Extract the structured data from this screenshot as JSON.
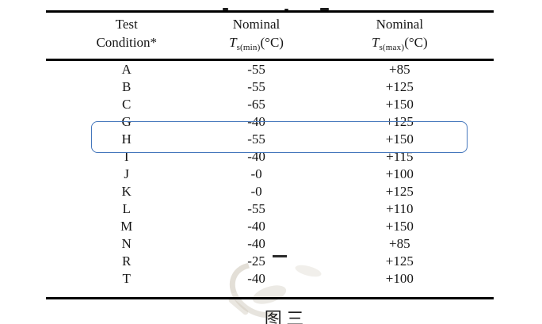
{
  "colors": {
    "highlight_border": "#4577bc",
    "rule": "#000000",
    "text": "#151515"
  },
  "table": {
    "header": {
      "col1": [
        "Test",
        "Condition*"
      ],
      "col2": {
        "line1": "Nominal",
        "symbol": "T",
        "subscript": "s(min)",
        "unit": "(°C)"
      },
      "col3": {
        "line1": "Nominal",
        "symbol": "T",
        "subscript": "s(max)",
        "unit": "(°C)"
      }
    },
    "rows": [
      {
        "condition": "A",
        "min": "-55",
        "max": "+85"
      },
      {
        "condition": "B",
        "min": "-55",
        "max": "+125"
      },
      {
        "condition": "C",
        "min": "-65",
        "max": "+150"
      },
      {
        "condition": "G",
        "min": "-40",
        "max": "+125"
      },
      {
        "condition": "H",
        "min": "-55",
        "max": "+150",
        "highlighted": true
      },
      {
        "condition": "I",
        "min": "-40",
        "max": "+115"
      },
      {
        "condition": "J",
        "min": "-0",
        "max": "+100"
      },
      {
        "condition": "K",
        "min": "-0",
        "max": "+125"
      },
      {
        "condition": "L",
        "min": "-55",
        "max": "+110"
      },
      {
        "condition": "M",
        "min": "-40",
        "max": "+150"
      },
      {
        "condition": "N",
        "min": "-40",
        "max": "+85"
      },
      {
        "condition": "R",
        "min": "-25",
        "max": "+125"
      },
      {
        "condition": "T",
        "min": "-40",
        "max": "+100"
      }
    ]
  },
  "highlight": {
    "row": "H"
  },
  "caption": "图 三"
}
